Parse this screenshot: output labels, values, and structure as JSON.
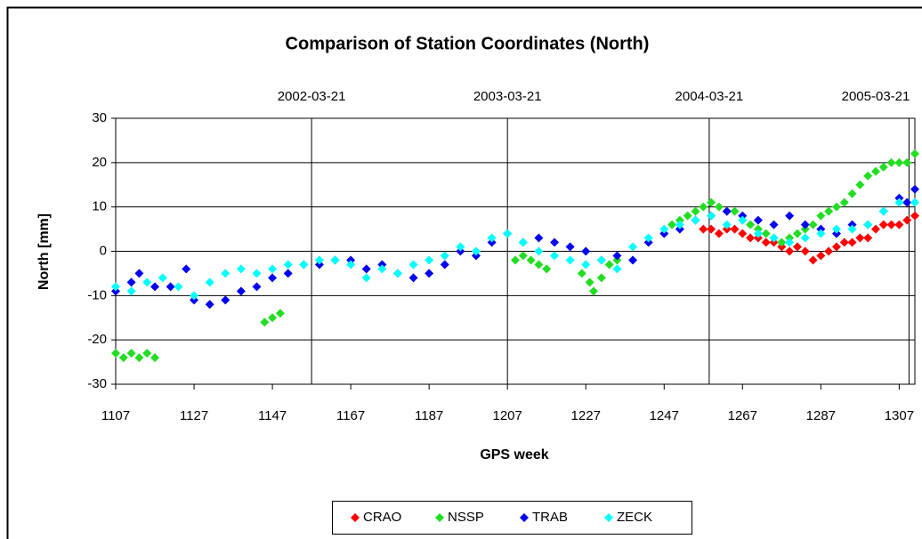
{
  "chart_data": {
    "type": "scatter",
    "title": "Comparison of Station Coordinates (North)",
    "x_label": "GPS week",
    "y_label": "North [mm]",
    "xlim": [
      1107,
      1311
    ],
    "xticks": [
      1107,
      1127,
      1147,
      1167,
      1187,
      1207,
      1227,
      1247,
      1267,
      1287,
      1307
    ],
    "ylim": [
      -30,
      30
    ],
    "yticks": [
      -30,
      -20,
      -10,
      0,
      10,
      20,
      30
    ],
    "x2ticks": [
      {
        "value": 1157,
        "label": "2002-03-21"
      },
      {
        "value": 1207,
        "label": "2003-03-21"
      },
      {
        "value": 1258.5,
        "label": "2004-03-21"
      },
      {
        "value": 1309.5,
        "label": "2005-03-21"
      }
    ],
    "grid": true,
    "legend": "bottom",
    "series": [
      {
        "name": "CRAO",
        "color": "#ff0000",
        "x": [
          1257,
          1259,
          1261,
          1263,
          1265,
          1267,
          1269,
          1271,
          1273,
          1275,
          1277,
          1279,
          1281,
          1283,
          1285,
          1287,
          1289,
          1291,
          1293,
          1295,
          1297,
          1299,
          1301,
          1303,
          1305,
          1307,
          1309,
          1311
        ],
        "values": [
          5,
          5,
          4,
          5,
          5,
          4,
          3,
          3,
          2,
          2,
          1,
          0,
          1,
          0,
          -2,
          -1,
          0,
          1,
          2,
          2,
          3,
          3,
          5,
          6,
          6,
          6,
          7,
          8
        ]
      },
      {
        "name": "NSSP",
        "color": "#22dd22",
        "x": [
          1107,
          1109,
          1111,
          1113,
          1115,
          1117,
          1145,
          1147,
          1149,
          1209,
          1211,
          1213,
          1215,
          1217,
          1226,
          1228,
          1229,
          1231,
          1233,
          1235,
          1249,
          1251,
          1253,
          1255,
          1257,
          1259,
          1261,
          1263,
          1265,
          1267,
          1269,
          1271,
          1273,
          1275,
          1277,
          1279,
          1281,
          1283,
          1285,
          1287,
          1289,
          1291,
          1293,
          1295,
          1297,
          1299,
          1301,
          1303,
          1305,
          1307,
          1309,
          1311
        ],
        "values": [
          -23,
          -24,
          -23,
          -24,
          -23,
          -24,
          -16,
          -15,
          -14,
          -2,
          -1,
          -2,
          -3,
          -4,
          -5,
          -7,
          -9,
          -6,
          -3,
          -2,
          6,
          7,
          8,
          9,
          10,
          11,
          10,
          9,
          9,
          7,
          6,
          5,
          4,
          3,
          2,
          3,
          4,
          5,
          6,
          8,
          9,
          10,
          11,
          13,
          15,
          17,
          18,
          19,
          20,
          20,
          20,
          22
        ]
      },
      {
        "name": "TRAB",
        "color": "#0000ee",
        "x": [
          1107,
          1111,
          1113,
          1117,
          1121,
          1125,
          1127,
          1131,
          1135,
          1139,
          1143,
          1147,
          1151,
          1155,
          1159,
          1163,
          1167,
          1171,
          1175,
          1179,
          1183,
          1187,
          1191,
          1195,
          1199,
          1203,
          1207,
          1211,
          1215,
          1219,
          1223,
          1227,
          1231,
          1235,
          1239,
          1243,
          1247,
          1251,
          1255,
          1259,
          1263,
          1267,
          1271,
          1275,
          1279,
          1283,
          1287,
          1291,
          1295,
          1299,
          1303,
          1307,
          1309,
          1311
        ],
        "values": [
          -9,
          -7,
          -5,
          -8,
          -8,
          -4,
          -11,
          -12,
          -11,
          -9,
          -8,
          -6,
          -5,
          -3,
          -3,
          -2,
          -2,
          -4,
          -3,
          -5,
          -6,
          -5,
          -3,
          0,
          -1,
          2,
          4,
          2,
          3,
          2,
          1,
          0,
          -2,
          -1,
          -2,
          2,
          4,
          5,
          7,
          8,
          9,
          8,
          7,
          6,
          8,
          6,
          5,
          4,
          6,
          6,
          9,
          12,
          11,
          14
        ]
      },
      {
        "name": "ZECK",
        "color": "#00ffff",
        "x": [
          1107,
          1111,
          1115,
          1119,
          1123,
          1127,
          1131,
          1135,
          1139,
          1143,
          1147,
          1151,
          1155,
          1159,
          1163,
          1167,
          1171,
          1175,
          1179,
          1183,
          1187,
          1191,
          1195,
          1199,
          1203,
          1207,
          1211,
          1215,
          1219,
          1223,
          1227,
          1231,
          1235,
          1239,
          1243,
          1247,
          1251,
          1255,
          1259,
          1263,
          1267,
          1271,
          1275,
          1279,
          1283,
          1287,
          1291,
          1295,
          1299,
          1303,
          1307,
          1311
        ],
        "values": [
          -8,
          -9,
          -7,
          -6,
          -8,
          -10,
          -7,
          -5,
          -4,
          -5,
          -4,
          -3,
          -3,
          -2,
          -2,
          -3,
          -6,
          -4,
          -5,
          -3,
          -2,
          -1,
          1,
          0,
          3,
          4,
          2,
          0,
          -1,
          -2,
          -3,
          -2,
          -4,
          1,
          3,
          5,
          6,
          7,
          8,
          6,
          7,
          4,
          3,
          2,
          3,
          4,
          5,
          5,
          6,
          9,
          11,
          11
        ]
      }
    ]
  }
}
